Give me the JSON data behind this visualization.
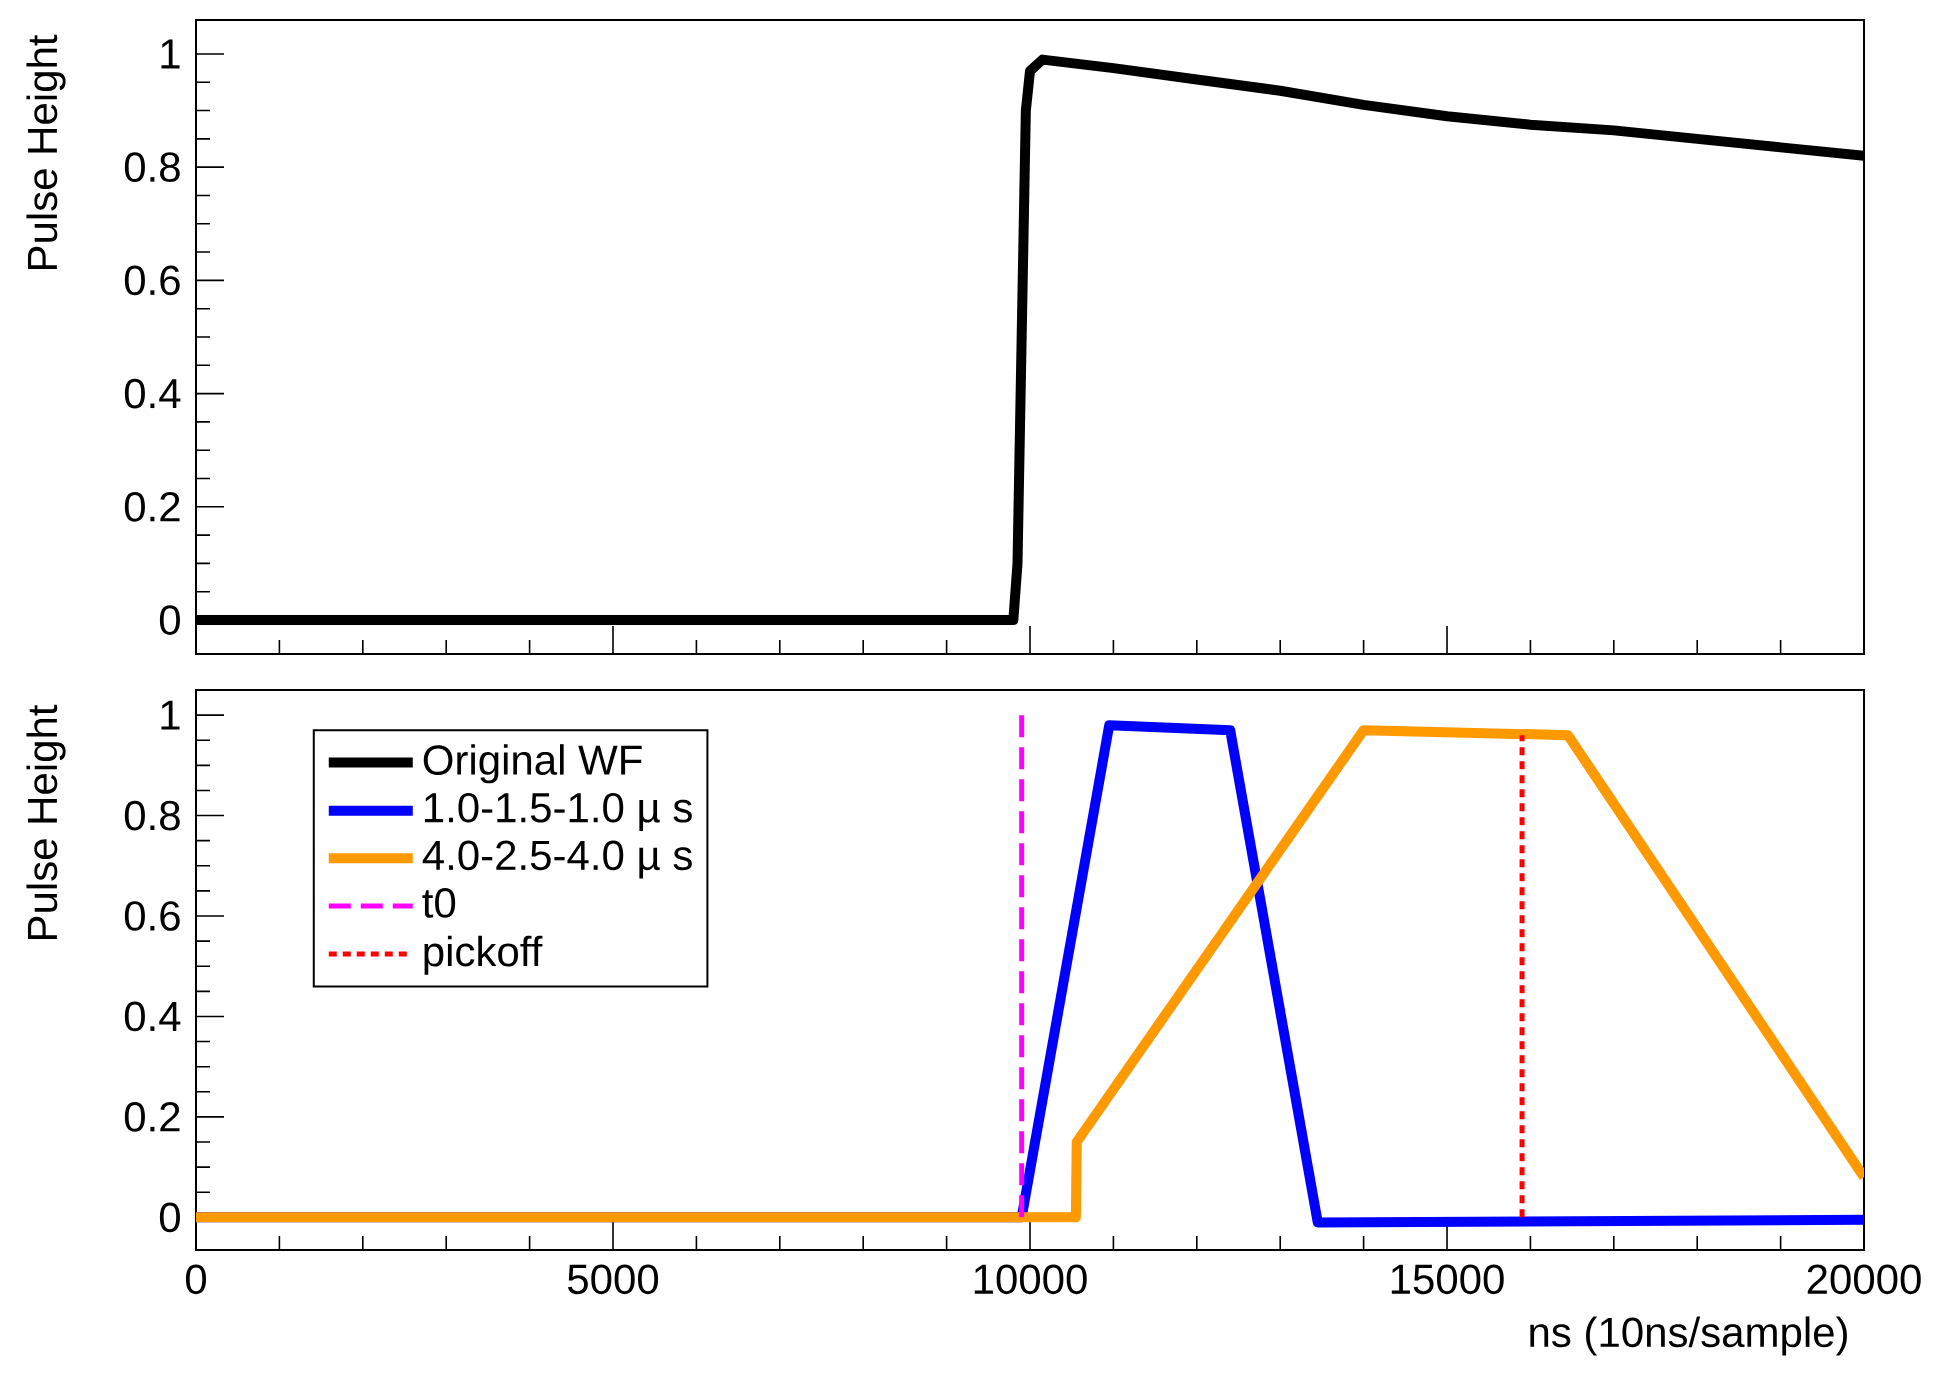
{
  "chart_data": [
    {
      "type": "line",
      "ylabel": "Pulse Height",
      "series": [
        {
          "color": "#000000",
          "x": [
            0,
            2000,
            4000,
            6000,
            8000,
            9800,
            9850,
            9900,
            9950,
            10000,
            10150,
            11000,
            12000,
            13000,
            14000,
            15000,
            16000,
            17000,
            18000,
            19000,
            20000
          ],
          "values": [
            0,
            0,
            0,
            0,
            0,
            0,
            0.1,
            0.5,
            0.9,
            0.97,
            0.99,
            0.975,
            0.955,
            0.935,
            0.91,
            0.89,
            0.875,
            0.865,
            0.85,
            0.835,
            0.82
          ]
        }
      ],
      "xlim": [
        0,
        20000
      ],
      "ylim": [
        -0.06,
        1.06
      ],
      "xticks": [
        0,
        5000,
        10000,
        15000,
        20000
      ],
      "yticks": [
        0,
        0.2,
        0.4,
        0.6,
        0.8,
        1
      ],
      "tick_labels": "y"
    },
    {
      "type": "line",
      "ylabel": "Pulse Height",
      "xlabel": "ns (10ns/sample)",
      "series": [
        {
          "name": "Original WF",
          "color": "#000000",
          "values": [
            null
          ]
        },
        {
          "name": "1.0-1.5-1.0 µ s",
          "color": "#0000ff",
          "x": [
            0,
            9900,
            10950,
            12400,
            13450,
            20000
          ],
          "values": [
            0,
            0,
            0.98,
            0.97,
            -0.01,
            -0.005
          ]
        },
        {
          "name": "4.0-2.5-4.0 µ s",
          "color": "#ff9900",
          "x": [
            0,
            10550,
            10560,
            14000,
            16450,
            20000
          ],
          "values": [
            0,
            0,
            0.15,
            0.97,
            0.96,
            0.08
          ]
        },
        {
          "name": "t0",
          "color": "#ff00ff",
          "line_style": "dashed",
          "x": [
            9900,
            9900
          ],
          "values": [
            0,
            1
          ]
        },
        {
          "name": "pickoff",
          "color": "#ff0000",
          "line_style": "dotted",
          "x": [
            15900,
            15900
          ],
          "values": [
            0,
            0.96
          ]
        }
      ],
      "legend": "top left",
      "xlim": [
        0,
        20000
      ],
      "ylim": [
        -0.065,
        1.05
      ],
      "xticks": [
        0,
        5000,
        10000,
        15000,
        20000
      ],
      "yticks": [
        0,
        0.2,
        0.4,
        0.6,
        0.8,
        1
      ]
    }
  ]
}
